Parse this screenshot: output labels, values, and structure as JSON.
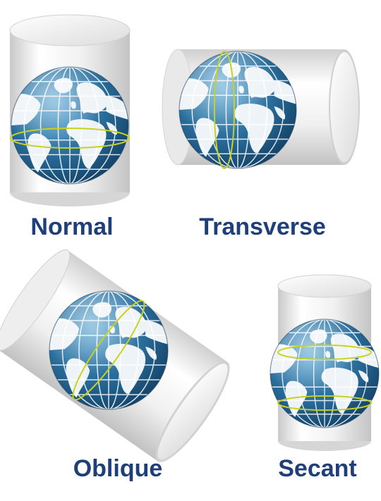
{
  "labels": {
    "normal": "Normal",
    "transverse": "Transverse",
    "oblique": "Oblique",
    "secant": "Secant"
  },
  "colors": {
    "label_text": "#1f3f7a",
    "ocean": "#1e5e8c",
    "ocean_light": "#4a95c4",
    "land": "#eef3f7",
    "cylinder_light": "#ffffff",
    "cylinder_dark": "#c9c9c9",
    "tangent_line": "#c8d21e"
  }
}
